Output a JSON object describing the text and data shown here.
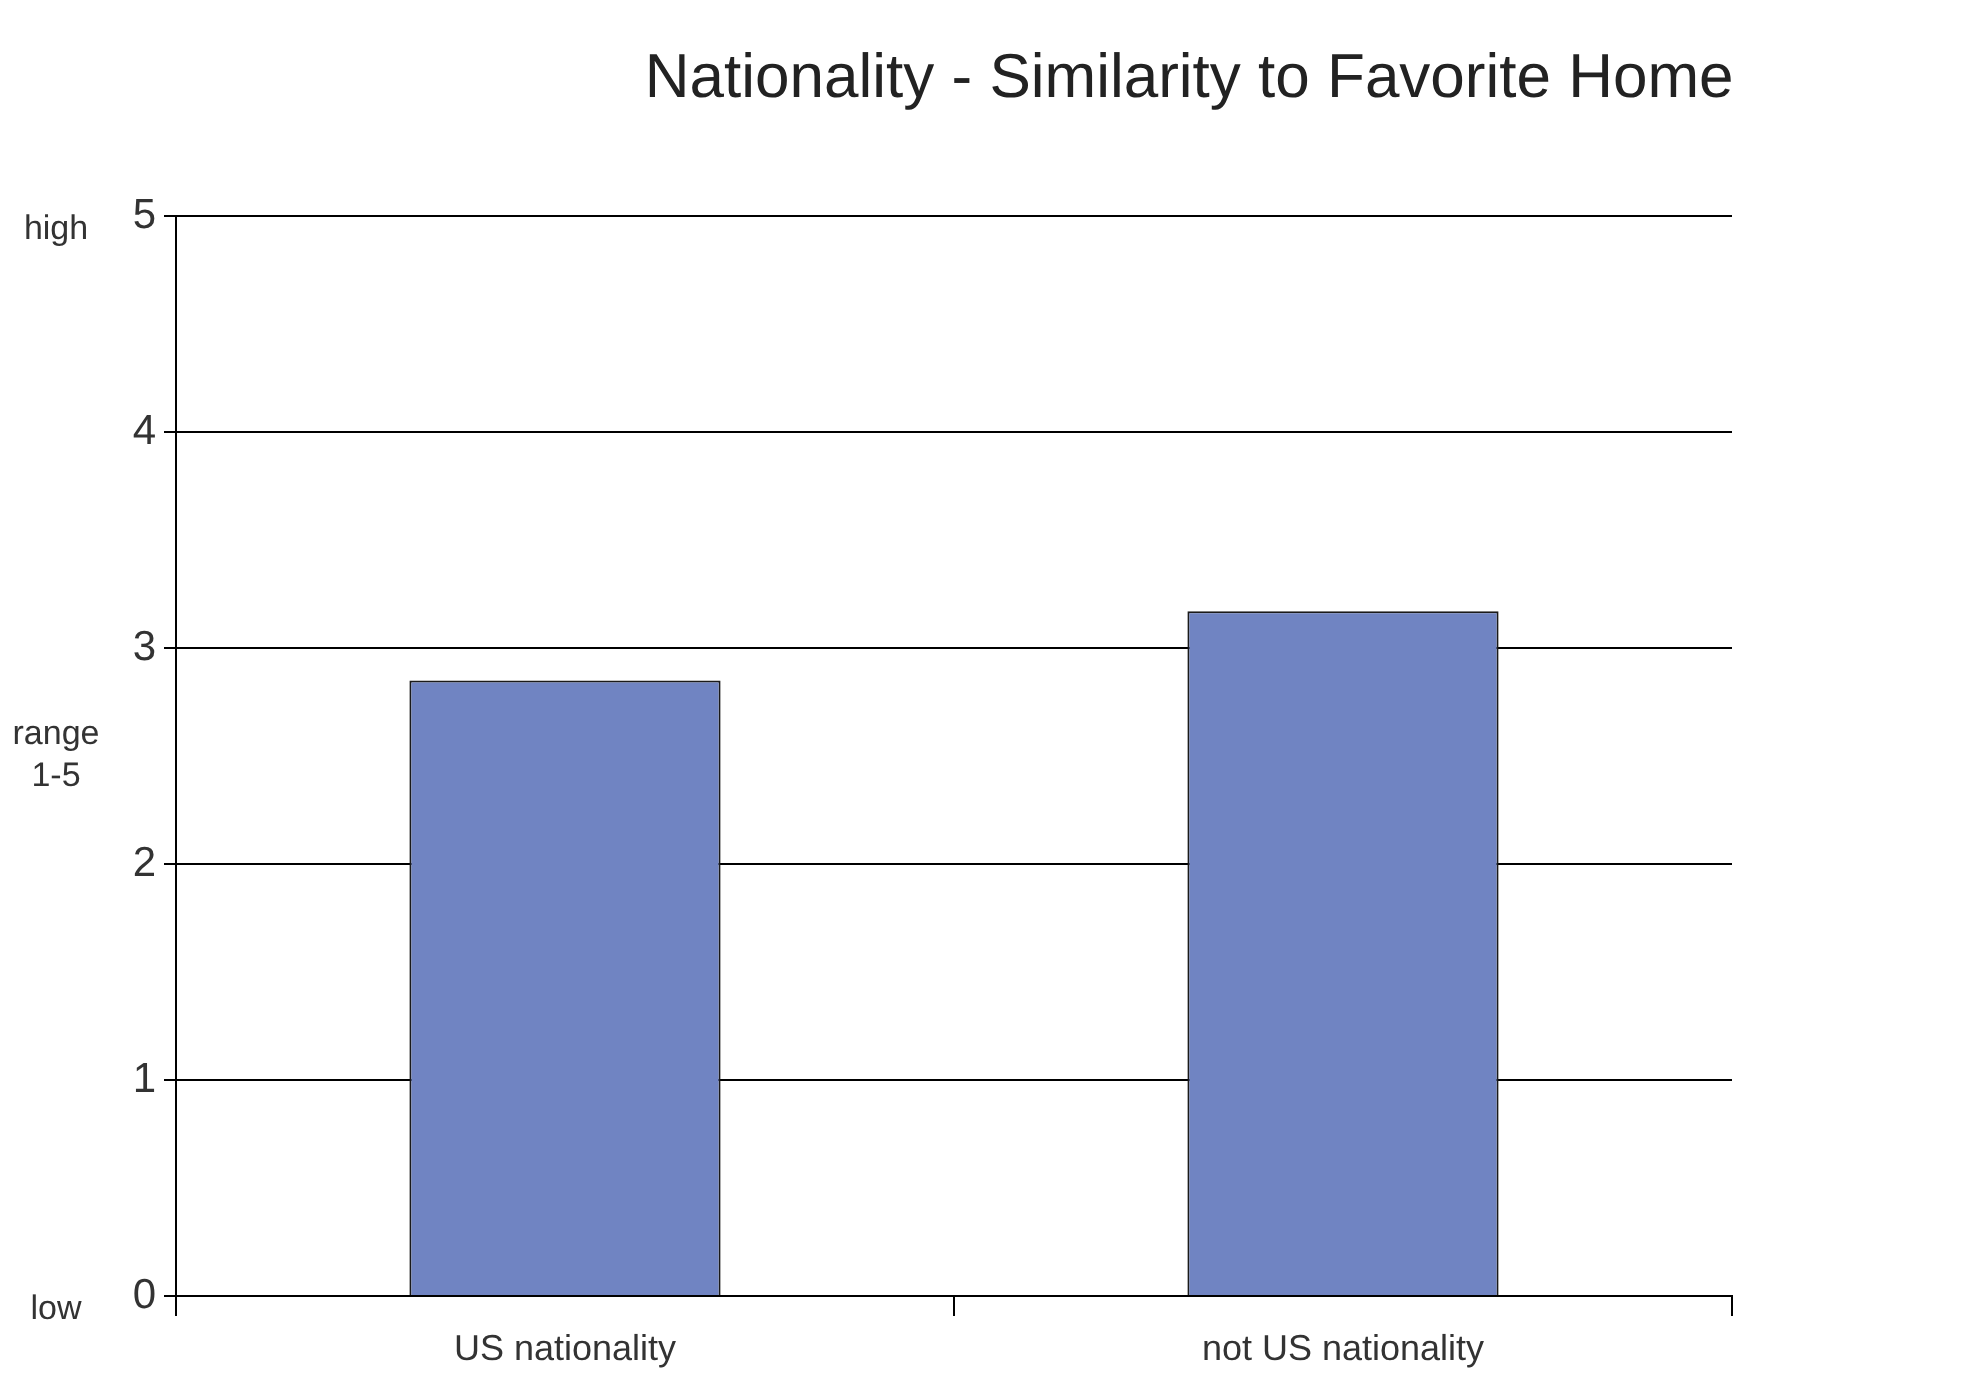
{
  "chart_data": {
    "type": "bar",
    "title": "Nationality - Similarity to Favorite Home",
    "ylabel": "range 1-5",
    "categories": [
      "US nationality",
      "not US nationality"
    ],
    "values": [
      2.85,
      3.17
    ],
    "color": "#7084c2",
    "ylim": [
      0,
      5
    ],
    "yticks": [
      0,
      1,
      2,
      3,
      4,
      5
    ],
    "grid": "y",
    "annotations": [
      "high",
      "low"
    ]
  }
}
